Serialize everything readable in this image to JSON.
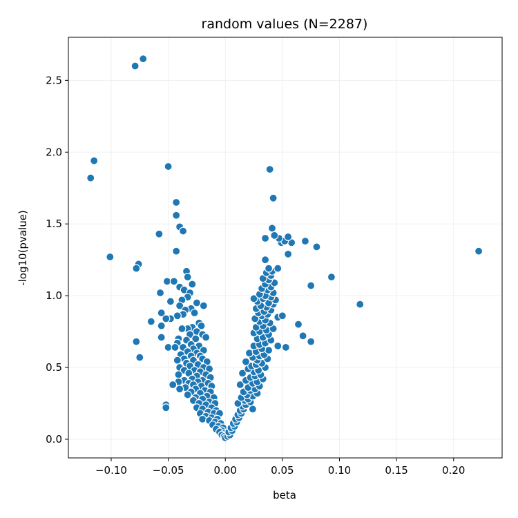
{
  "chart_data": {
    "type": "scatter",
    "title": "random values (N=2287)",
    "xlabel": "beta",
    "ylabel": "-log10(pvalue)",
    "xlim": [
      -0.1375,
      0.2425
    ],
    "ylim": [
      -0.13,
      2.8
    ],
    "xticks": [
      -0.1,
      -0.05,
      0.0,
      0.05,
      0.1,
      0.15,
      0.2
    ],
    "xtick_labels": [
      "−0.10",
      "−0.05",
      "0.00",
      "0.05",
      "0.10",
      "0.15",
      "0.20"
    ],
    "yticks": [
      0.0,
      0.5,
      1.0,
      1.5,
      2.0,
      2.5
    ],
    "ytick_labels": [
      "0.0",
      "0.5",
      "1.0",
      "1.5",
      "2.0",
      "2.5"
    ],
    "grid": true,
    "marker_color": "#1f77b4",
    "marker_edge_color": "#ffffff",
    "points": [
      [
        -0.079,
        2.6
      ],
      [
        -0.072,
        2.65
      ],
      [
        -0.115,
        1.94
      ],
      [
        -0.118,
        1.82
      ],
      [
        -0.05,
        1.9
      ],
      [
        -0.043,
        1.65
      ],
      [
        -0.043,
        1.56
      ],
      [
        -0.04,
        1.48
      ],
      [
        -0.037,
        1.45
      ],
      [
        -0.058,
        1.43
      ],
      [
        -0.043,
        1.31
      ],
      [
        -0.101,
        1.27
      ],
      [
        -0.076,
        1.22
      ],
      [
        -0.078,
        1.19
      ],
      [
        -0.034,
        1.17
      ],
      [
        -0.033,
        1.13
      ],
      [
        -0.051,
        1.1
      ],
      [
        -0.045,
        1.1
      ],
      [
        -0.029,
        1.08
      ],
      [
        -0.04,
        1.06
      ],
      [
        -0.036,
        1.04
      ],
      [
        -0.031,
        1.02
      ],
      [
        -0.057,
        1.02
      ],
      [
        -0.033,
        0.99
      ],
      [
        -0.038,
        0.97
      ],
      [
        -0.048,
        0.96
      ],
      [
        -0.025,
        0.95
      ],
      [
        -0.04,
        0.93
      ],
      [
        -0.019,
        0.93
      ],
      [
        -0.03,
        0.91
      ],
      [
        -0.035,
        0.9
      ],
      [
        -0.027,
        0.88
      ],
      [
        -0.056,
        0.88
      ],
      [
        -0.037,
        0.87
      ],
      [
        -0.042,
        0.86
      ],
      [
        -0.048,
        0.84
      ],
      [
        -0.052,
        0.84
      ],
      [
        -0.065,
        0.82
      ],
      [
        -0.023,
        0.81
      ],
      [
        -0.056,
        0.79
      ],
      [
        -0.021,
        0.79
      ],
      [
        -0.029,
        0.78
      ],
      [
        -0.033,
        0.77
      ],
      [
        -0.038,
        0.77
      ],
      [
        -0.025,
        0.75
      ],
      [
        -0.031,
        0.73
      ],
      [
        -0.02,
        0.73
      ],
      [
        -0.056,
        0.71
      ],
      [
        -0.017,
        0.71
      ],
      [
        -0.041,
        0.7
      ],
      [
        -0.026,
        0.7
      ],
      [
        -0.034,
        0.69
      ],
      [
        -0.078,
        0.68
      ],
      [
        -0.042,
        0.67
      ],
      [
        -0.03,
        0.66
      ],
      [
        -0.023,
        0.65
      ],
      [
        -0.037,
        0.64
      ],
      [
        -0.05,
        0.64
      ],
      [
        -0.044,
        0.64
      ],
      [
        -0.028,
        0.63
      ],
      [
        -0.019,
        0.62
      ],
      [
        -0.033,
        0.61
      ],
      [
        -0.025,
        0.6
      ],
      [
        -0.039,
        0.59
      ],
      [
        -0.022,
        0.58
      ],
      [
        -0.03,
        0.58
      ],
      [
        -0.075,
        0.57
      ],
      [
        -0.036,
        0.56
      ],
      [
        -0.02,
        0.56
      ],
      [
        -0.028,
        0.55
      ],
      [
        -0.042,
        0.55
      ],
      [
        -0.016,
        0.54
      ],
      [
        -0.034,
        0.53
      ],
      [
        -0.024,
        0.52
      ],
      [
        -0.031,
        0.51
      ],
      [
        -0.04,
        0.5
      ],
      [
        -0.019,
        0.5
      ],
      [
        -0.014,
        0.49
      ],
      [
        -0.027,
        0.48
      ],
      [
        -0.036,
        0.48
      ],
      [
        -0.022,
        0.47
      ],
      [
        -0.032,
        0.46
      ],
      [
        -0.041,
        0.45
      ],
      [
        -0.017,
        0.45
      ],
      [
        -0.025,
        0.44
      ],
      [
        -0.013,
        0.43
      ],
      [
        -0.029,
        0.42
      ],
      [
        -0.036,
        0.41
      ],
      [
        -0.02,
        0.41
      ],
      [
        -0.041,
        0.4
      ],
      [
        -0.024,
        0.4
      ],
      [
        -0.032,
        0.39
      ],
      [
        -0.015,
        0.39
      ],
      [
        -0.046,
        0.38
      ],
      [
        -0.028,
        0.38
      ],
      [
        -0.021,
        0.37
      ],
      [
        -0.012,
        0.37
      ],
      [
        -0.035,
        0.36
      ],
      [
        -0.04,
        0.35
      ],
      [
        -0.026,
        0.35
      ],
      [
        -0.018,
        0.34
      ],
      [
        -0.03,
        0.33
      ],
      [
        -0.013,
        0.33
      ],
      [
        -0.022,
        0.32
      ],
      [
        -0.033,
        0.31
      ],
      [
        -0.016,
        0.3
      ],
      [
        -0.026,
        0.29
      ],
      [
        -0.01,
        0.29
      ],
      [
        -0.02,
        0.28
      ],
      [
        -0.028,
        0.27
      ],
      [
        -0.014,
        0.26
      ],
      [
        -0.023,
        0.25
      ],
      [
        -0.009,
        0.25
      ],
      [
        -0.052,
        0.24
      ],
      [
        -0.017,
        0.24
      ],
      [
        -0.052,
        0.22
      ],
      [
        -0.025,
        0.22
      ],
      [
        -0.012,
        0.22
      ],
      [
        -0.02,
        0.21
      ],
      [
        -0.008,
        0.2
      ],
      [
        -0.015,
        0.19
      ],
      [
        -0.022,
        0.18
      ],
      [
        -0.01,
        0.18
      ],
      [
        -0.005,
        0.18
      ],
      [
        -0.017,
        0.16
      ],
      [
        -0.012,
        0.15
      ],
      [
        -0.007,
        0.14
      ],
      [
        -0.02,
        0.14
      ],
      [
        -0.014,
        0.13
      ],
      [
        -0.009,
        0.12
      ],
      [
        -0.004,
        0.11
      ],
      [
        -0.011,
        0.1
      ],
      [
        -0.006,
        0.09
      ],
      [
        -0.002,
        0.08
      ],
      [
        -0.008,
        0.07
      ],
      [
        -0.003,
        0.06
      ],
      [
        -0.005,
        0.05
      ],
      [
        -0.001,
        0.04
      ],
      [
        -0.003,
        0.03
      ],
      [
        -0.001,
        0.02
      ],
      [
        0.0,
        0.01
      ],
      [
        0.002,
        0.02
      ],
      [
        0.004,
        0.03
      ],
      [
        0.003,
        0.05
      ],
      [
        0.006,
        0.06
      ],
      [
        0.005,
        0.08
      ],
      [
        0.008,
        0.09
      ],
      [
        0.007,
        0.11
      ],
      [
        0.01,
        0.12
      ],
      [
        0.009,
        0.14
      ],
      [
        0.012,
        0.15
      ],
      [
        0.011,
        0.17
      ],
      [
        0.014,
        0.18
      ],
      [
        0.013,
        0.2
      ],
      [
        0.016,
        0.21
      ],
      [
        0.024,
        0.21
      ],
      [
        0.015,
        0.23
      ],
      [
        0.018,
        0.24
      ],
      [
        0.011,
        0.25
      ],
      [
        0.022,
        0.26
      ],
      [
        0.017,
        0.27
      ],
      [
        0.02,
        0.28
      ],
      [
        0.014,
        0.29
      ],
      [
        0.024,
        0.3
      ],
      [
        0.019,
        0.31
      ],
      [
        0.028,
        0.32
      ],
      [
        0.016,
        0.33
      ],
      [
        0.022,
        0.34
      ],
      [
        0.026,
        0.35
      ],
      [
        0.02,
        0.36
      ],
      [
        0.03,
        0.37
      ],
      [
        0.013,
        0.38
      ],
      [
        0.024,
        0.39
      ],
      [
        0.028,
        0.4
      ],
      [
        0.018,
        0.41
      ],
      [
        0.033,
        0.42
      ],
      [
        0.022,
        0.43
      ],
      [
        0.026,
        0.44
      ],
      [
        0.031,
        0.45
      ],
      [
        0.015,
        0.46
      ],
      [
        0.025,
        0.47
      ],
      [
        0.029,
        0.48
      ],
      [
        0.02,
        0.49
      ],
      [
        0.035,
        0.5
      ],
      [
        0.023,
        0.51
      ],
      [
        0.027,
        0.52
      ],
      [
        0.032,
        0.53
      ],
      [
        0.018,
        0.54
      ],
      [
        0.028,
        0.55
      ],
      [
        0.037,
        0.56
      ],
      [
        0.024,
        0.57
      ],
      [
        0.03,
        0.58
      ],
      [
        0.034,
        0.59
      ],
      [
        0.021,
        0.6
      ],
      [
        0.027,
        0.61
      ],
      [
        0.038,
        0.62
      ],
      [
        0.032,
        0.63
      ],
      [
        0.053,
        0.64
      ],
      [
        0.046,
        0.65
      ],
      [
        0.025,
        0.65
      ],
      [
        0.03,
        0.66
      ],
      [
        0.035,
        0.67
      ],
      [
        0.075,
        0.68
      ],
      [
        0.04,
        0.69
      ],
      [
        0.028,
        0.7
      ],
      [
        0.033,
        0.71
      ],
      [
        0.068,
        0.72
      ],
      [
        0.038,
        0.73
      ],
      [
        0.025,
        0.74
      ],
      [
        0.03,
        0.75
      ],
      [
        0.036,
        0.76
      ],
      [
        0.042,
        0.77
      ],
      [
        0.027,
        0.78
      ],
      [
        0.033,
        0.79
      ],
      [
        0.064,
        0.8
      ],
      [
        0.039,
        0.81
      ],
      [
        0.03,
        0.82
      ],
      [
        0.035,
        0.83
      ],
      [
        0.026,
        0.84
      ],
      [
        0.046,
        0.85
      ],
      [
        0.05,
        0.86
      ],
      [
        0.032,
        0.86
      ],
      [
        0.037,
        0.87
      ],
      [
        0.029,
        0.88
      ],
      [
        0.034,
        0.89
      ],
      [
        0.04,
        0.9
      ],
      [
        0.027,
        0.91
      ],
      [
        0.036,
        0.92
      ],
      [
        0.031,
        0.93
      ],
      [
        0.118,
        0.94
      ],
      [
        0.042,
        0.94
      ],
      [
        0.038,
        0.95
      ],
      [
        0.028,
        0.96
      ],
      [
        0.044,
        0.97
      ],
      [
        0.033,
        0.98
      ],
      [
        0.025,
        0.98
      ],
      [
        0.04,
        0.99
      ],
      [
        0.035,
        1.0
      ],
      [
        0.03,
        1.01
      ],
      [
        0.042,
        1.02
      ],
      [
        0.037,
        1.04
      ],
      [
        0.032,
        1.05
      ],
      [
        0.04,
        1.06
      ],
      [
        0.075,
        1.07
      ],
      [
        0.035,
        1.08
      ],
      [
        0.043,
        1.09
      ],
      [
        0.038,
        1.11
      ],
      [
        0.033,
        1.12
      ],
      [
        0.093,
        1.13
      ],
      [
        0.04,
        1.14
      ],
      [
        0.036,
        1.16
      ],
      [
        0.041,
        1.17
      ],
      [
        0.038,
        1.19
      ],
      [
        0.046,
        1.19
      ],
      [
        0.035,
        1.25
      ],
      [
        0.055,
        1.29
      ],
      [
        0.222,
        1.31
      ],
      [
        0.08,
        1.34
      ],
      [
        0.058,
        1.37
      ],
      [
        0.049,
        1.37
      ],
      [
        0.052,
        1.38
      ],
      [
        0.07,
        1.38
      ],
      [
        0.047,
        1.4
      ],
      [
        0.055,
        1.41
      ],
      [
        0.035,
        1.4
      ],
      [
        0.043,
        1.42
      ],
      [
        0.041,
        1.47
      ],
      [
        0.042,
        1.68
      ],
      [
        0.039,
        1.88
      ]
    ]
  }
}
